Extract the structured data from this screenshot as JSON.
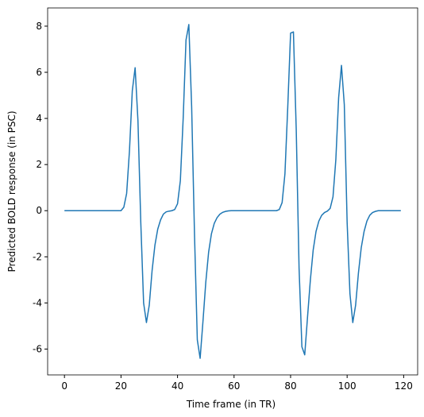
{
  "chart_data": {
    "type": "line",
    "xlabel": "Time frame (in TR)",
    "ylabel": "Predicted BOLD response (in PSC)",
    "x": [
      0,
      1,
      2,
      3,
      4,
      5,
      6,
      7,
      8,
      9,
      10,
      11,
      12,
      13,
      14,
      15,
      16,
      17,
      18,
      19,
      20,
      21,
      22,
      23,
      24,
      25,
      26,
      27,
      28,
      29,
      30,
      31,
      32,
      33,
      34,
      35,
      36,
      37,
      38,
      39,
      40,
      41,
      42,
      43,
      44,
      45,
      46,
      47,
      48,
      49,
      50,
      51,
      52,
      53,
      54,
      55,
      56,
      57,
      58,
      59,
      60,
      61,
      62,
      63,
      64,
      65,
      66,
      67,
      68,
      69,
      70,
      71,
      72,
      73,
      74,
      75,
      76,
      77,
      78,
      79,
      80,
      81,
      82,
      83,
      84,
      85,
      86,
      87,
      88,
      89,
      90,
      91,
      92,
      93,
      94,
      95,
      96,
      97,
      98,
      99,
      100,
      101,
      102,
      103,
      104,
      105,
      106,
      107,
      108,
      109,
      110,
      111,
      112,
      113,
      114,
      115,
      116,
      117,
      118,
      119
    ],
    "series": [
      {
        "color": "#1f77b4",
        "values": [
          0,
          0,
          0,
          0,
          0,
          0,
          0,
          0,
          0,
          0,
          0,
          0,
          0,
          0,
          0,
          0,
          0,
          0,
          0,
          0,
          0,
          0.15,
          0.75,
          2.6,
          5.2,
          6.2,
          3.9,
          -0.5,
          -4.0,
          -4.85,
          -4.1,
          -2.6,
          -1.5,
          -0.8,
          -0.4,
          -0.15,
          -0.05,
          -0.02,
          0,
          0.05,
          0.3,
          1.3,
          4.0,
          7.4,
          8.07,
          4.5,
          -1.0,
          -5.6,
          -6.4,
          -4.8,
          -3.1,
          -1.8,
          -1.0,
          -0.55,
          -0.3,
          -0.15,
          -0.07,
          -0.03,
          -0.01,
          0,
          0,
          0,
          0,
          0,
          0,
          0,
          0,
          0,
          0,
          0,
          0,
          0,
          0,
          0,
          0,
          0,
          0.05,
          0.35,
          1.6,
          4.5,
          7.7,
          7.75,
          3.5,
          -2.5,
          -5.9,
          -6.25,
          -4.6,
          -3.0,
          -1.7,
          -0.9,
          -0.45,
          -0.2,
          -0.08,
          -0.02,
          0.1,
          0.6,
          2.2,
          4.9,
          6.3,
          4.6,
          -0.5,
          -3.6,
          -4.85,
          -4.1,
          -2.7,
          -1.6,
          -0.9,
          -0.45,
          -0.2,
          -0.08,
          -0.03,
          0,
          0,
          0,
          0,
          0,
          0,
          0,
          0,
          0
        ]
      }
    ],
    "xlim": [
      -5.95,
      124.95
    ],
    "xticks": [
      0,
      20,
      40,
      60,
      80,
      100,
      120
    ],
    "ylim": [
      -7.12,
      8.79
    ],
    "yticks": [
      -6,
      -4,
      -2,
      0,
      2,
      4,
      6,
      8
    ]
  }
}
